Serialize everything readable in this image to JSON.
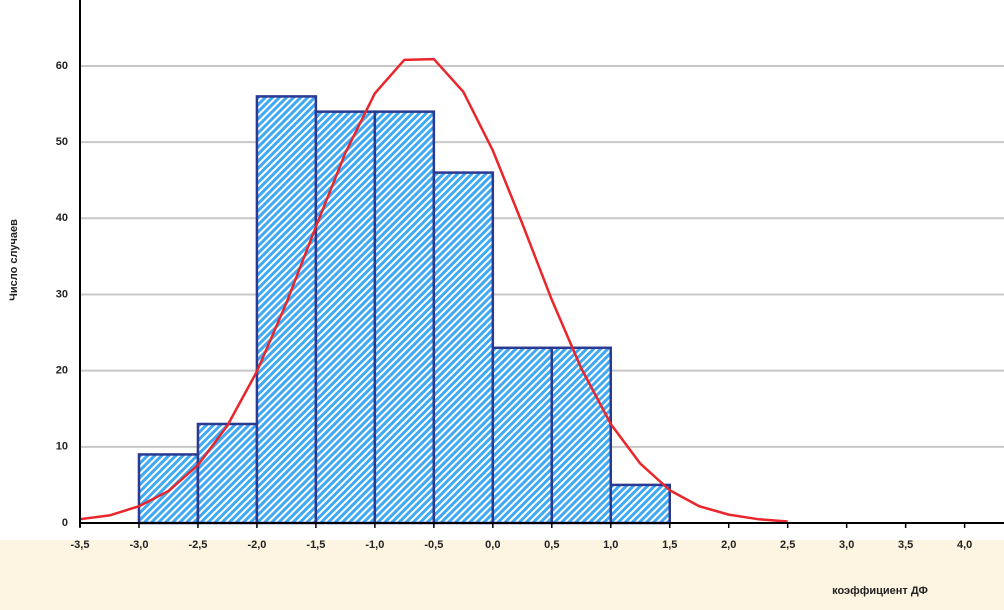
{
  "chart_data": {
    "type": "histogram",
    "x_label": "коэффициент ДФ",
    "y_label": "Число случаев",
    "bins": [
      -3.0,
      -2.5,
      -2.0,
      -1.5,
      -1.0,
      -0.5,
      0.0,
      0.5,
      1.0,
      1.5
    ],
    "counts": [
      9,
      13,
      56,
      54,
      54,
      46,
      23,
      23,
      5
    ],
    "color": "#3fa9f5",
    "edge_color": "#2b3990",
    "curve": {
      "color": "#e8262b",
      "x": [
        -3.5,
        -3.25,
        -3.0,
        -2.75,
        -2.5,
        -2.25,
        -2.0,
        -1.75,
        -1.5,
        -1.25,
        -1.0,
        -0.75,
        -0.5,
        -0.25,
        0.0,
        0.25,
        0.5,
        0.75,
        1.0,
        1.25,
        1.5,
        1.75,
        2.0,
        2.25,
        2.5
      ],
      "values": [
        0.5,
        1.0,
        2.2,
        4.2,
        7.6,
        12.8,
        19.9,
        28.9,
        38.9,
        48.6,
        56.4,
        60.8,
        60.9,
        56.6,
        48.9,
        39.3,
        29.3,
        20.3,
        13.0,
        7.8,
        4.3,
        2.2,
        1.1,
        0.5,
        0.2
      ]
    },
    "xlim": [
      -3.5,
      4.3
    ],
    "ylim": [
      0,
      68
    ],
    "xticks": [
      {
        "value": -3.5,
        "label": "-3,5"
      },
      {
        "value": -3.0,
        "label": "-3,0"
      },
      {
        "value": -2.5,
        "label": "-2,5"
      },
      {
        "value": -2.0,
        "label": "-2,0"
      },
      {
        "value": -1.5,
        "label": "-1,5"
      },
      {
        "value": -1.0,
        "label": "-1,0"
      },
      {
        "value": -0.5,
        "label": "-0,5"
      },
      {
        "value": 0.0,
        "label": "0,0"
      },
      {
        "value": 0.5,
        "label": "0,5"
      },
      {
        "value": 1.0,
        "label": "1,0"
      },
      {
        "value": 1.5,
        "label": "1,5"
      },
      {
        "value": 2.0,
        "label": "2,0"
      },
      {
        "value": 2.5,
        "label": "2,5"
      },
      {
        "value": 3.0,
        "label": "3,0"
      },
      {
        "value": 3.5,
        "label": "3,5"
      },
      {
        "value": 4.0,
        "label": "4,0"
      }
    ],
    "yticks": [
      0,
      10,
      20,
      30,
      40,
      50,
      60
    ],
    "grid": true
  }
}
